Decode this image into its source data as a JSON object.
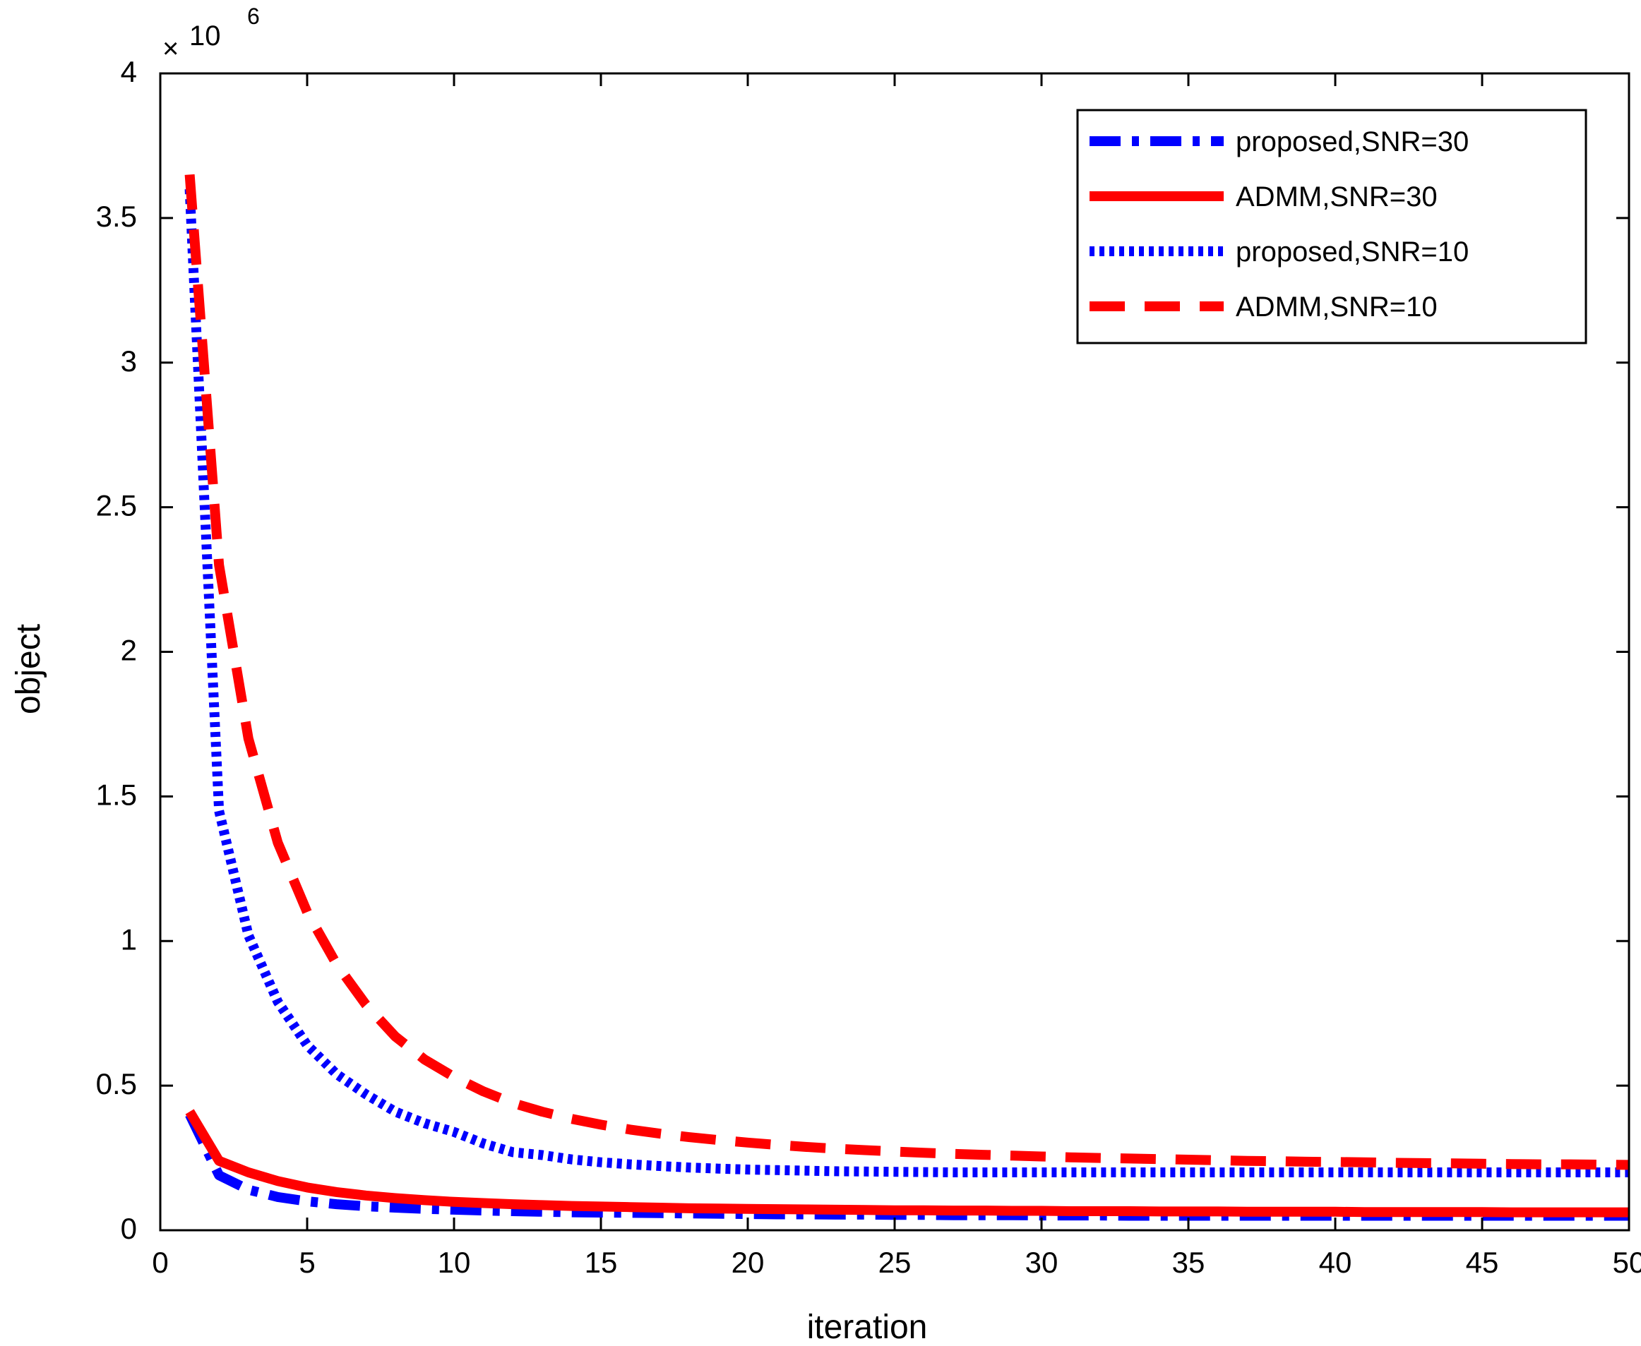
{
  "chart_data": {
    "type": "line",
    "title": "",
    "xlabel": "iteration",
    "ylabel": "object",
    "xlim": [
      0,
      50
    ],
    "ylim": [
      0,
      4
    ],
    "y_multiplier_base": "10",
    "y_multiplier_exp": "6",
    "x_ticks": [
      0,
      5,
      10,
      15,
      20,
      25,
      30,
      35,
      40,
      45,
      50
    ],
    "y_ticks": [
      0,
      0.5,
      1,
      1.5,
      2,
      2.5,
      3,
      3.5,
      4
    ],
    "x_tick_labels": [
      "0",
      "5",
      "10",
      "15",
      "20",
      "25",
      "30",
      "35",
      "40",
      "45",
      "50"
    ],
    "y_tick_labels": [
      "0",
      "0.5",
      "1",
      "1.5",
      "2",
      "2.5",
      "3",
      "3.5",
      "4"
    ],
    "x": [
      1,
      2,
      3,
      4,
      5,
      6,
      7,
      8,
      9,
      10,
      11,
      12,
      13,
      14,
      15,
      16,
      17,
      18,
      19,
      20,
      21,
      22,
      23,
      24,
      25,
      26,
      27,
      28,
      29,
      30,
      31,
      32,
      33,
      34,
      35,
      36,
      37,
      38,
      39,
      40,
      41,
      42,
      43,
      44,
      45,
      46,
      47,
      48,
      49,
      50
    ],
    "legend_position": "top-right",
    "grid": false,
    "series": [
      {
        "name": "proposed,SNR=30",
        "color": "#0000ff",
        "style": "dashdot",
        "values": [
          0.4,
          0.19,
          0.14,
          0.115,
          0.1,
          0.09,
          0.083,
          0.078,
          0.074,
          0.071,
          0.068,
          0.066,
          0.064,
          0.062,
          0.061,
          0.06,
          0.059,
          0.058,
          0.057,
          0.056,
          0.055,
          0.055,
          0.054,
          0.054,
          0.053,
          0.053,
          0.052,
          0.052,
          0.052,
          0.051,
          0.051,
          0.051,
          0.05,
          0.05,
          0.05,
          0.05,
          0.05,
          0.05,
          0.05,
          0.05,
          0.05,
          0.05,
          0.05,
          0.05,
          0.05,
          0.05,
          0.05,
          0.05,
          0.05,
          0.05
        ]
      },
      {
        "name": "ADMM,SNR=30",
        "color": "#ff0000",
        "style": "solid",
        "values": [
          0.41,
          0.24,
          0.2,
          0.17,
          0.148,
          0.132,
          0.12,
          0.111,
          0.104,
          0.098,
          0.094,
          0.09,
          0.087,
          0.084,
          0.082,
          0.08,
          0.078,
          0.076,
          0.075,
          0.074,
          0.073,
          0.072,
          0.071,
          0.07,
          0.069,
          0.069,
          0.068,
          0.068,
          0.067,
          0.067,
          0.066,
          0.066,
          0.066,
          0.065,
          0.065,
          0.065,
          0.064,
          0.064,
          0.064,
          0.064,
          0.063,
          0.063,
          0.063,
          0.063,
          0.063,
          0.062,
          0.062,
          0.062,
          0.062,
          0.062
        ]
      },
      {
        "name": "proposed,SNR=10",
        "color": "#0000ff",
        "style": "dotted",
        "values": [
          3.6,
          1.45,
          1.02,
          0.79,
          0.64,
          0.54,
          0.47,
          0.41,
          0.37,
          0.34,
          0.3,
          0.27,
          0.26,
          0.245,
          0.235,
          0.228,
          0.222,
          0.217,
          0.213,
          0.21,
          0.208,
          0.206,
          0.204,
          0.203,
          0.202,
          0.201,
          0.2,
          0.2,
          0.2,
          0.2,
          0.2,
          0.2,
          0.2,
          0.2,
          0.2,
          0.2,
          0.2,
          0.2,
          0.2,
          0.2,
          0.2,
          0.2,
          0.2,
          0.2,
          0.2,
          0.2,
          0.2,
          0.2,
          0.2,
          0.2
        ]
      },
      {
        "name": "ADMM,SNR=10",
        "color": "#ff0000",
        "style": "dashed",
        "values": [
          3.65,
          2.3,
          1.7,
          1.34,
          1.1,
          0.92,
          0.78,
          0.67,
          0.59,
          0.53,
          0.48,
          0.44,
          0.41,
          0.385,
          0.365,
          0.348,
          0.334,
          0.322,
          0.312,
          0.303,
          0.295,
          0.288,
          0.282,
          0.277,
          0.272,
          0.268,
          0.264,
          0.261,
          0.258,
          0.255,
          0.252,
          0.25,
          0.248,
          0.246,
          0.244,
          0.242,
          0.24,
          0.239,
          0.237,
          0.236,
          0.235,
          0.233,
          0.232,
          0.231,
          0.23,
          0.229,
          0.228,
          0.228,
          0.227,
          0.226
        ]
      }
    ]
  }
}
